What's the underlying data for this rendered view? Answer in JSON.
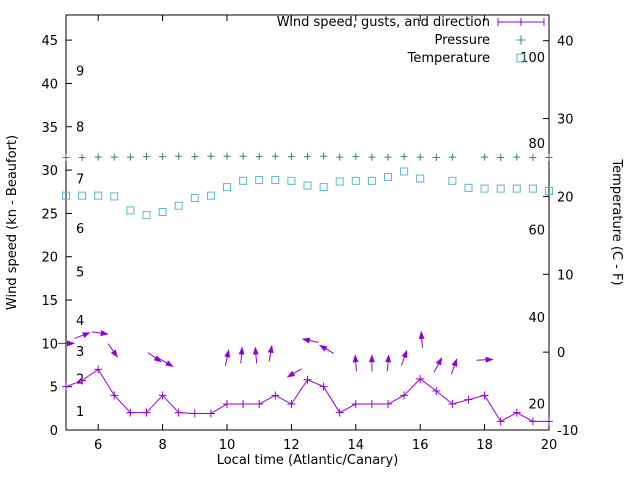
{
  "chart_data": {
    "type": "line",
    "title": "",
    "xlabel": "Local time (Atlantic/Canary)",
    "ylabel_left": "Wind speed (kn - Beaufort)",
    "ylabel_right": "Temperature (C - F)",
    "grid": false,
    "legend_position": "top-right-inside",
    "colors": {
      "wind": "#9400d3",
      "pressure": "#2e8b57",
      "temperature": "#5bb8c8",
      "axis": "#000000",
      "background": "#ffffff"
    },
    "legend": [
      {
        "label": "Wind speed, gusts, and direction",
        "series": "wind_speed",
        "color": "#9400d3",
        "marker": "errorbar-plus"
      },
      {
        "label": "Pressure",
        "series": "pressure",
        "color": "#2e8b57",
        "marker": "plus"
      },
      {
        "label": "Temperature",
        "series": "temperature",
        "color": "#5bb8c8",
        "marker": "square-open"
      }
    ],
    "axes": {
      "x": {
        "min": 5,
        "max": 20,
        "ticks": [
          6,
          8,
          10,
          12,
          14,
          16,
          18,
          20
        ]
      },
      "y_left": {
        "min": 0,
        "max": 47.9,
        "ticks": [
          0,
          5,
          10,
          15,
          20,
          25,
          30,
          35,
          40,
          45
        ]
      },
      "y_right": {
        "min": -10,
        "max": 43.3,
        "ticks": [
          -10,
          0,
          10,
          20,
          30,
          40
        ]
      }
    },
    "beaufort_labels": [
      {
        "n": 1,
        "kn": 2.1
      },
      {
        "n": 2,
        "kn": 5.8
      },
      {
        "n": 3,
        "kn": 9.0
      },
      {
        "n": 4,
        "kn": 12.6
      },
      {
        "n": 5,
        "kn": 18.2
      },
      {
        "n": 6,
        "kn": 23.2
      },
      {
        "n": 7,
        "kn": 28.9
      },
      {
        "n": 8,
        "kn": 34.9
      },
      {
        "n": 9,
        "kn": 41.4
      }
    ],
    "fahrenheit_labels": [
      {
        "f": 20,
        "c": -6.7
      },
      {
        "f": 40,
        "c": 4.4
      },
      {
        "f": 60,
        "c": 15.6
      },
      {
        "f": 80,
        "c": 26.7
      },
      {
        "f": 100,
        "c": 37.8
      }
    ],
    "x_values": [
      5,
      5.5,
      6,
      6.5,
      7,
      7.5,
      8,
      8.5,
      9,
      9.5,
      10,
      10.5,
      11,
      11.5,
      12,
      12.5,
      13,
      13.5,
      14,
      14.5,
      15,
      15.5,
      16,
      16.5,
      17,
      17.5,
      18,
      18.5,
      19,
      19.5,
      20
    ],
    "series": {
      "wind_speed": {
        "axis": "left",
        "units": "kn",
        "values": [
          5,
          5.7,
          7,
          4,
          2,
          2,
          4,
          2,
          1.9,
          1.9,
          3,
          3,
          3,
          4,
          3,
          5.8,
          5,
          2,
          3,
          3,
          3,
          4,
          5.9,
          4.5,
          3,
          3.5,
          4,
          1,
          2,
          1,
          1
        ]
      },
      "pressure": {
        "axis": "left",
        "values": [
          31.45,
          31.45,
          31.5,
          31.5,
          31.5,
          31.55,
          31.55,
          31.6,
          31.55,
          31.6,
          31.6,
          31.6,
          31.55,
          31.6,
          31.55,
          31.55,
          31.6,
          31.5,
          31.55,
          31.5,
          31.5,
          31.55,
          31.5,
          31.45,
          31.5,
          null,
          31.5,
          31.45,
          31.5,
          31.45,
          31.45
        ]
      },
      "temperature": {
        "axis": "right",
        "units": "C",
        "values": [
          20.1,
          20.1,
          20.1,
          20.0,
          18.2,
          17.6,
          18.0,
          18.8,
          19.8,
          20.1,
          21.2,
          22.0,
          22.1,
          22.1,
          22.0,
          21.4,
          21.2,
          21.9,
          22.0,
          22.0,
          22.5,
          23.2,
          22.3,
          null,
          22.0,
          21.1,
          21.0,
          21.0,
          21.0,
          21.0,
          20.7
        ]
      },
      "wind_direction": {
        "axis": "left",
        "arrows": [
          {
            "x": 5.0,
            "y": 10.0,
            "angle": 0
          },
          {
            "x": 5.5,
            "y": 10.9,
            "angle": 20
          },
          {
            "x": 6.05,
            "y": 11.2,
            "angle": -8
          },
          {
            "x": 6.45,
            "y": 9.2,
            "angle": -55
          },
          {
            "x": 7.75,
            "y": 8.4,
            "angle": -35
          },
          {
            "x": 8.1,
            "y": 7.8,
            "angle": -30
          },
          {
            "x": 10.0,
            "y": 8.3,
            "angle": 78
          },
          {
            "x": 10.45,
            "y": 8.6,
            "angle": 85
          },
          {
            "x": 10.9,
            "y": 8.6,
            "angle": 95
          },
          {
            "x": 11.35,
            "y": 8.8,
            "angle": 80
          },
          {
            "x": 12.1,
            "y": 6.6,
            "angle": -150
          },
          {
            "x": 12.6,
            "y": 10.3,
            "angle": 168
          },
          {
            "x": 13.1,
            "y": 9.3,
            "angle": 150
          },
          {
            "x": 14.0,
            "y": 7.7,
            "angle": 95
          },
          {
            "x": 14.5,
            "y": 7.7,
            "angle": 90
          },
          {
            "x": 15.0,
            "y": 7.7,
            "angle": 85
          },
          {
            "x": 15.5,
            "y": 8.3,
            "angle": 70
          },
          {
            "x": 16.05,
            "y": 10.4,
            "angle": 95
          },
          {
            "x": 16.55,
            "y": 7.5,
            "angle": 62
          },
          {
            "x": 17.05,
            "y": 7.3,
            "angle": 70
          },
          {
            "x": 18.0,
            "y": 8.1,
            "angle": 3
          }
        ]
      }
    }
  }
}
